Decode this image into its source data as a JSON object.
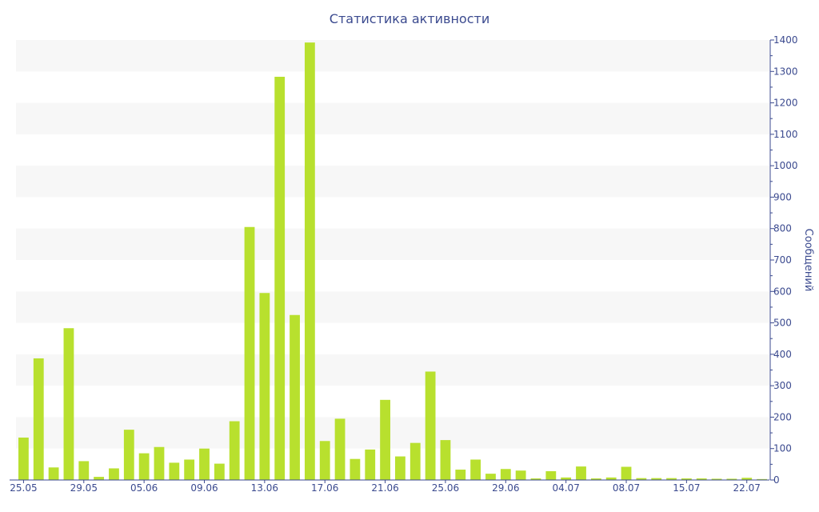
{
  "chart_data": {
    "type": "bar",
    "title": "Статистика активности",
    "ylabel": "Сообщений",
    "xlabel": "",
    "ylim": [
      0,
      1400
    ],
    "yticks": [
      0,
      100,
      200,
      300,
      400,
      500,
      600,
      700,
      800,
      900,
      1000,
      1100,
      1200,
      1300,
      1400
    ],
    "y_axis_side": "right",
    "grid": "alternating horizontal bands",
    "legend": "none",
    "bar_color": "#b8e02e",
    "axis_color": "#3b4a8f",
    "band_color": "#f7f7f7",
    "xticks": [
      {
        "label": "25.05",
        "index": 0
      },
      {
        "label": "29.05",
        "index": 4
      },
      {
        "label": "05.06",
        "index": 8
      },
      {
        "label": "09.06",
        "index": 12
      },
      {
        "label": "13.06",
        "index": 16
      },
      {
        "label": "17.06",
        "index": 20
      },
      {
        "label": "21.06",
        "index": 24
      },
      {
        "label": "25.06",
        "index": 28
      },
      {
        "label": "29.06",
        "index": 32
      },
      {
        "label": "04.07",
        "index": 36
      },
      {
        "label": "08.07",
        "index": 40
      },
      {
        "label": "15.07",
        "index": 44
      },
      {
        "label": "22.07",
        "index": 48
      }
    ],
    "values": [
      135,
      387,
      40,
      483,
      60,
      10,
      37,
      160,
      85,
      105,
      55,
      65,
      100,
      52,
      187,
      805,
      595,
      1283,
      525,
      1392,
      124,
      195,
      67,
      97,
      255,
      75,
      118,
      345,
      127,
      33,
      65,
      20,
      35,
      30,
      5,
      28,
      8,
      43,
      5,
      8,
      42,
      6,
      6,
      6,
      5,
      5,
      4,
      4,
      7,
      3
    ]
  }
}
